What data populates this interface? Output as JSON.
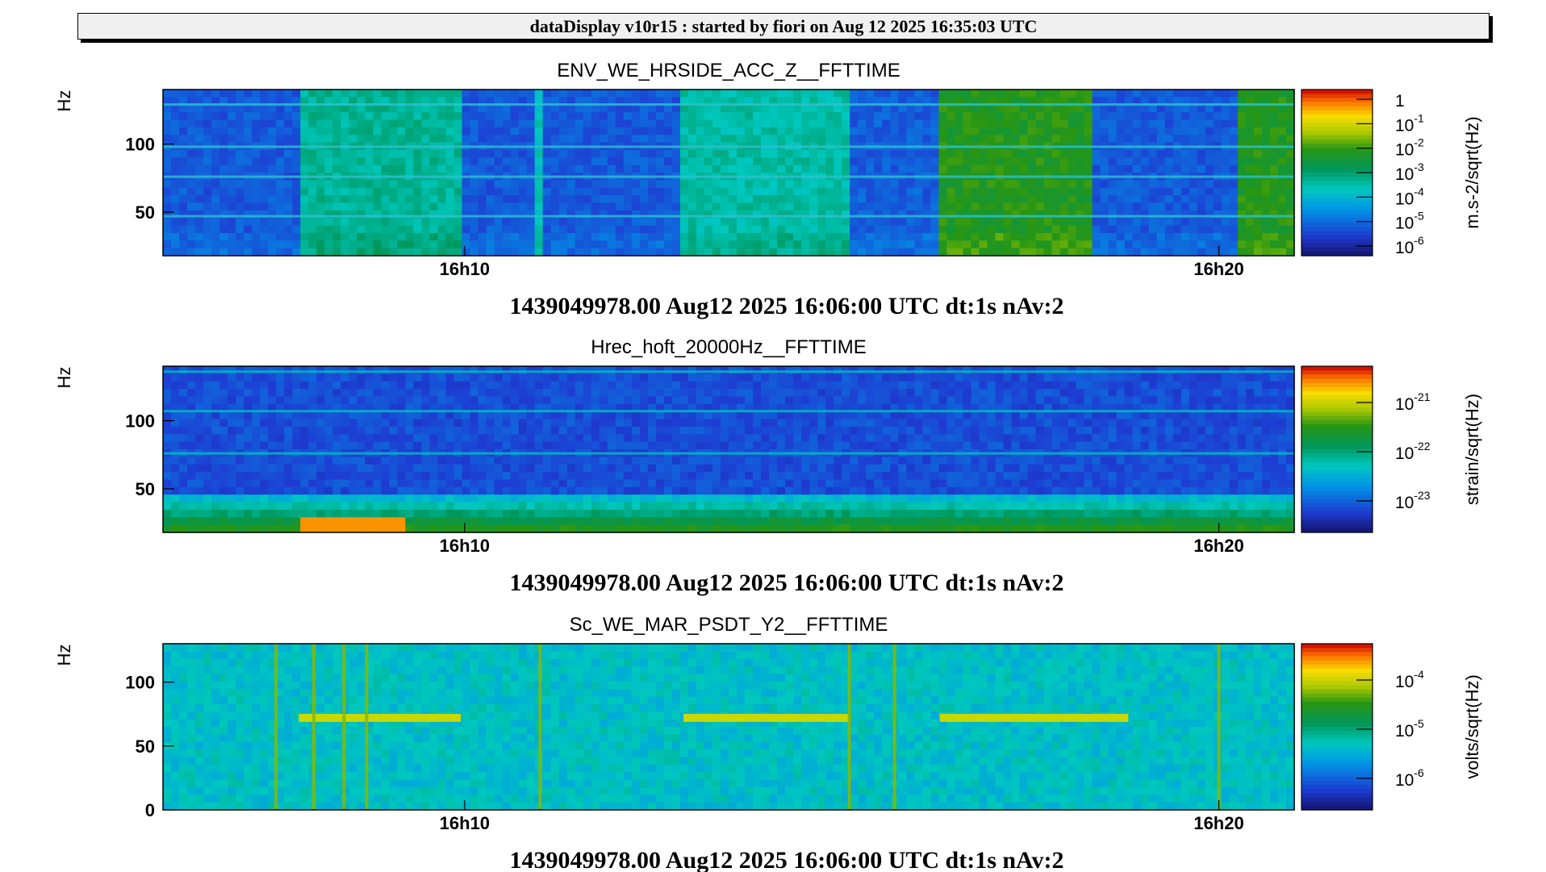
{
  "header": {
    "title": "dataDisplay v10r15 : started by fiori on Aug 12 2025 16:35:03 UTC"
  },
  "chart_data": [
    {
      "type": "heatmap",
      "title": "ENV_WE_HRSIDE_ACC_Z__FFTTIME",
      "ylabel": "Hz",
      "ylim": [
        18,
        140
      ],
      "yticks": [
        50,
        100
      ],
      "ytick_labels": [
        "50",
        "100"
      ],
      "xrange_min": [
        6.0,
        21.0
      ],
      "xticks_min": [
        10,
        20
      ],
      "xtick_labels": [
        "16h10",
        "16h20"
      ],
      "time_caption": "1439049978.00 Aug12 2025 16:06:00 UTC dt:1s nAv:2",
      "colorbar": {
        "unit_label": "m.s-2/sqrt(Hz)",
        "scale": "log",
        "ticks": [
          {
            "base": "1",
            "exp": ""
          },
          {
            "base": "10",
            "exp": "-1"
          },
          {
            "base": "10",
            "exp": "-2"
          },
          {
            "base": "10",
            "exp": "-3"
          },
          {
            "base": "10",
            "exp": "-4"
          },
          {
            "base": "10",
            "exp": "-5"
          },
          {
            "base": "10",
            "exp": "-6"
          }
        ]
      },
      "segments": [
        {
          "t0": 6.0,
          "t1": 7.8,
          "level": 0.17
        },
        {
          "t0": 7.8,
          "t1": 9.95,
          "level": 0.45
        },
        {
          "t0": 9.95,
          "t1": 10.9,
          "level": 0.17
        },
        {
          "t0": 10.9,
          "t1": 11.05,
          "level": 0.4
        },
        {
          "t0": 11.05,
          "t1": 12.9,
          "level": 0.17
        },
        {
          "t0": 12.9,
          "t1": 15.1,
          "level": 0.43
        },
        {
          "t0": 15.1,
          "t1": 16.3,
          "level": 0.18
        },
        {
          "t0": 16.3,
          "t1": 18.3,
          "level": 0.62
        },
        {
          "t0": 18.3,
          "t1": 19.7,
          "level": 0.17
        },
        {
          "t0": 19.7,
          "t1": 20.3,
          "level": 0.17
        },
        {
          "t0": 20.3,
          "t1": 21.0,
          "level": 0.62
        }
      ],
      "lines_hz": [
        47,
        76,
        98,
        129
      ]
    },
    {
      "type": "heatmap",
      "title": "Hrec_hoft_20000Hz__FFTTIME",
      "ylabel": "Hz",
      "ylim": [
        18,
        140
      ],
      "yticks": [
        50,
        100
      ],
      "ytick_labels": [
        "50",
        "100"
      ],
      "xrange_min": [
        6.0,
        21.0
      ],
      "xticks_min": [
        10,
        20
      ],
      "xtick_labels": [
        "16h10",
        "16h20"
      ],
      "time_caption": "1439049978.00 Aug12 2025 16:06:00 UTC dt:1s nAv:2",
      "colorbar": {
        "unit_label": "strain/sqrt(Hz)",
        "scale": "log",
        "ticks": [
          {
            "base": "10",
            "exp": "-21"
          },
          {
            "base": "10",
            "exp": "-22"
          },
          {
            "base": "10",
            "exp": "-23"
          }
        ]
      },
      "lines_hz": [
        76,
        107,
        136
      ]
    },
    {
      "type": "heatmap",
      "title": "Sc_WE_MAR_PSDT_Y2__FFTTIME",
      "ylabel": "Hz",
      "ylim": [
        0,
        130
      ],
      "yticks": [
        0,
        50,
        100
      ],
      "ytick_labels": [
        "0",
        "50",
        "100"
      ],
      "xrange_min": [
        6.0,
        21.0
      ],
      "xticks_min": [
        10,
        20
      ],
      "xtick_labels": [
        "16h10",
        "16h20"
      ],
      "time_caption": "1439049978.00 Aug12 2025 16:06:00 UTC dt:1s nAv:2",
      "colorbar": {
        "unit_label": "volts/sqrt(Hz)",
        "scale": "log",
        "ticks": [
          {
            "base": "10",
            "exp": "-4"
          },
          {
            "base": "10",
            "exp": "-5"
          },
          {
            "base": "10",
            "exp": "-6"
          }
        ]
      },
      "bands": [
        {
          "t0": 7.8,
          "t1": 9.95,
          "hz": 72
        },
        {
          "t0": 12.9,
          "t1": 15.1,
          "hz": 72
        },
        {
          "t0": 16.3,
          "t1": 18.8,
          "hz": 72
        }
      ],
      "vlines_min": [
        7.5,
        8.0,
        8.4,
        8.7,
        11.0,
        15.1,
        15.7,
        20.0
      ]
    }
  ]
}
